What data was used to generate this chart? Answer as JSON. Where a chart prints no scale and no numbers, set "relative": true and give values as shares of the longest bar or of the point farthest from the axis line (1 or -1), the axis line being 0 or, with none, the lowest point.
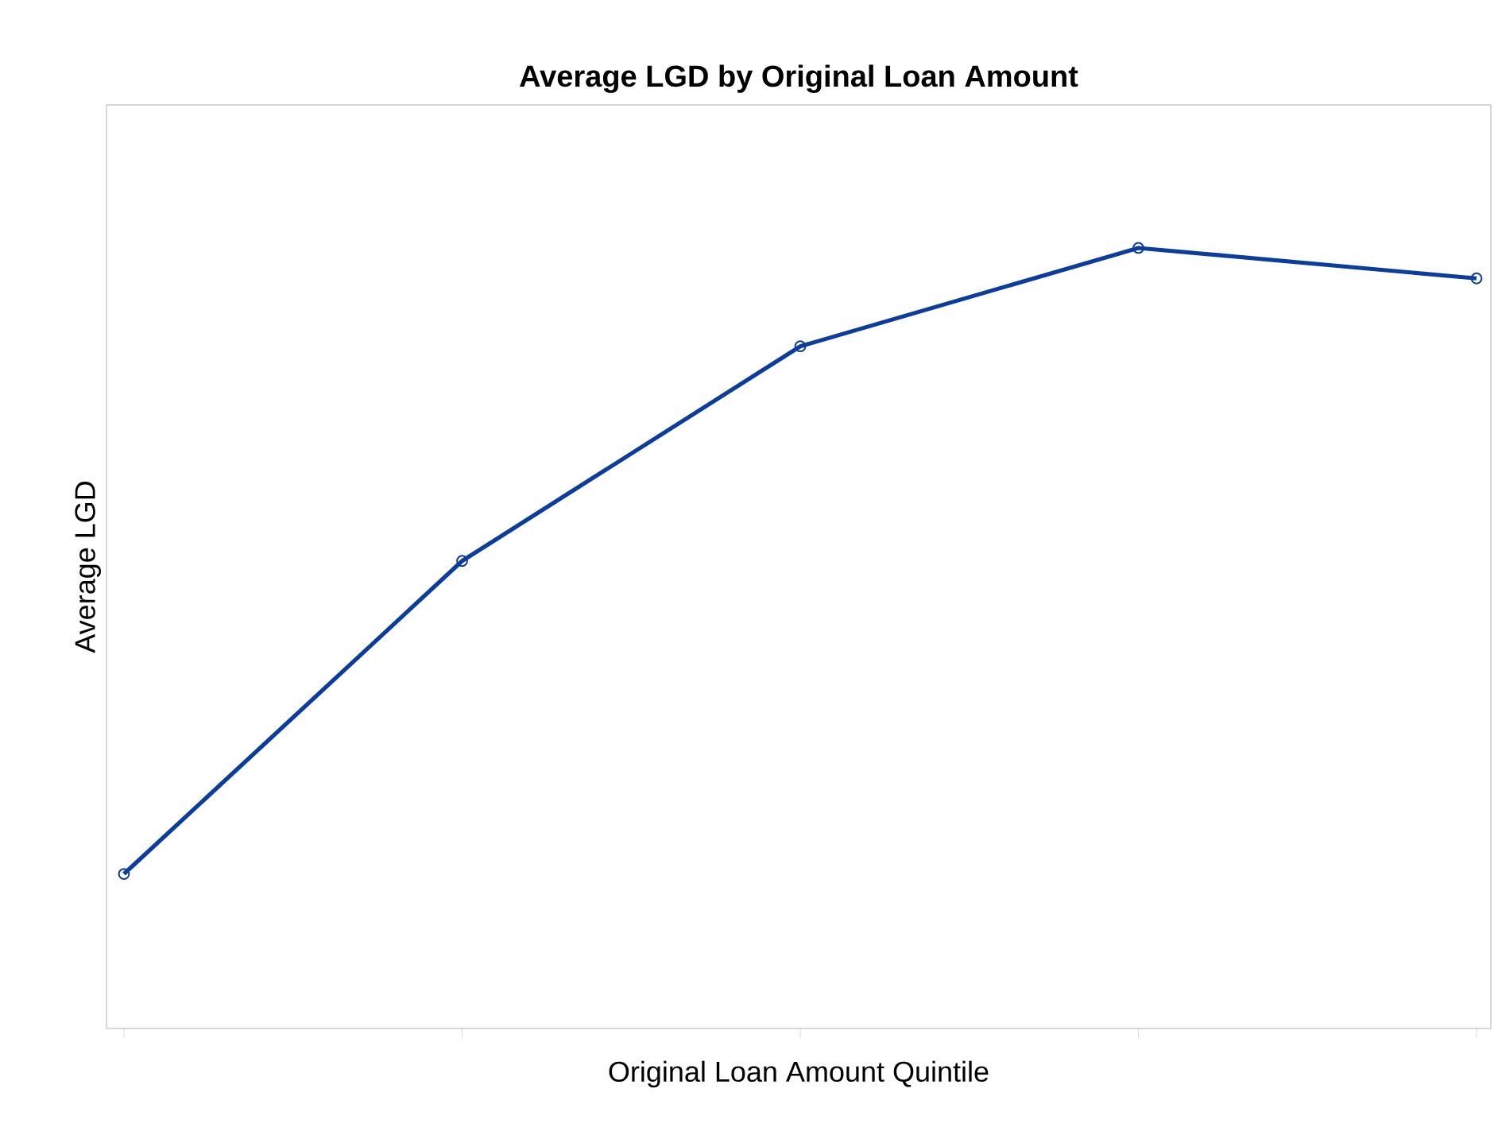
{
  "chart_data": {
    "type": "line",
    "title": "Average LGD by Original Loan Amount",
    "xlabel": "Original Loan Amount Quintile",
    "ylabel": "Average LGD",
    "categories": [
      null,
      null,
      null,
      null,
      null
    ],
    "values": [
      0.198,
      0.599,
      0.874,
      1,
      0.961
    ],
    "color": "#0b3d9e",
    "marker": "circle",
    "relative": true
  }
}
